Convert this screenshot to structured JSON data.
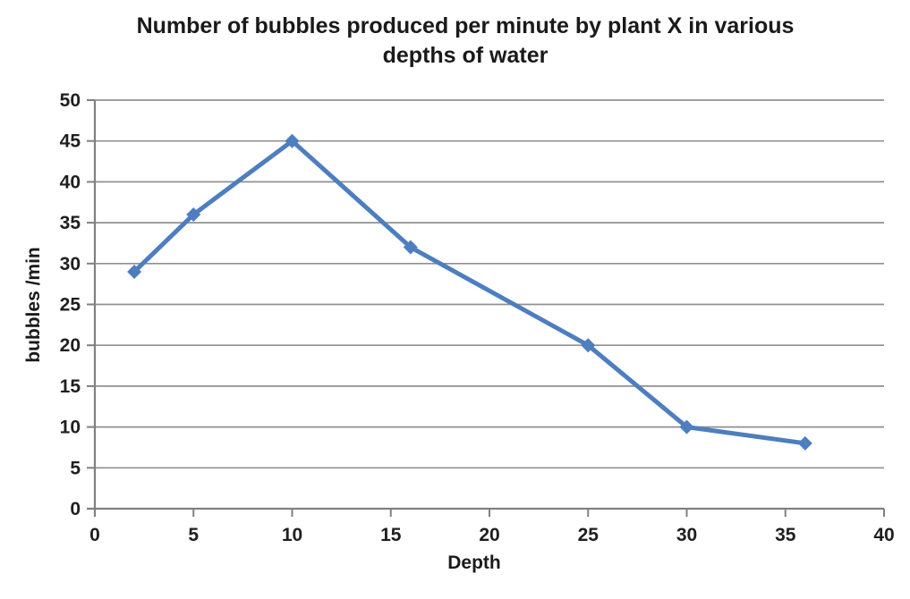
{
  "chart": {
    "title_line1": "Number of bubbles produced per minute by plant X in various",
    "title_line2": "depths of water",
    "x_axis_title": "Depth",
    "y_axis_title": "bubbles /min"
  },
  "chart_data": {
    "type": "line",
    "title": "Number of bubbles produced per minute by plant X in various depths of water",
    "xlabel": "Depth",
    "ylabel": "bubbles /min",
    "series": [
      {
        "name": "bubbles /min",
        "points": [
          [
            2,
            29
          ],
          [
            5,
            36
          ],
          [
            10,
            45
          ],
          [
            16,
            32
          ],
          [
            25,
            20
          ],
          [
            30,
            10
          ],
          [
            36,
            8
          ]
        ]
      }
    ],
    "xlim": [
      0,
      40
    ],
    "ylim": [
      0,
      50
    ],
    "x_ticks": [
      0,
      5,
      10,
      15,
      20,
      25,
      30,
      35,
      40
    ],
    "y_ticks": [
      0,
      5,
      10,
      15,
      20,
      25,
      30,
      35,
      40,
      45,
      50
    ],
    "grid": "horizontal",
    "legend": "none",
    "marker": "diamond",
    "colors": {
      "series": "#4D7EBF",
      "gridline": "#909090",
      "axis": "#808080",
      "tick_text": "#1f1f1f",
      "title_text": "#1a1a1a"
    }
  }
}
